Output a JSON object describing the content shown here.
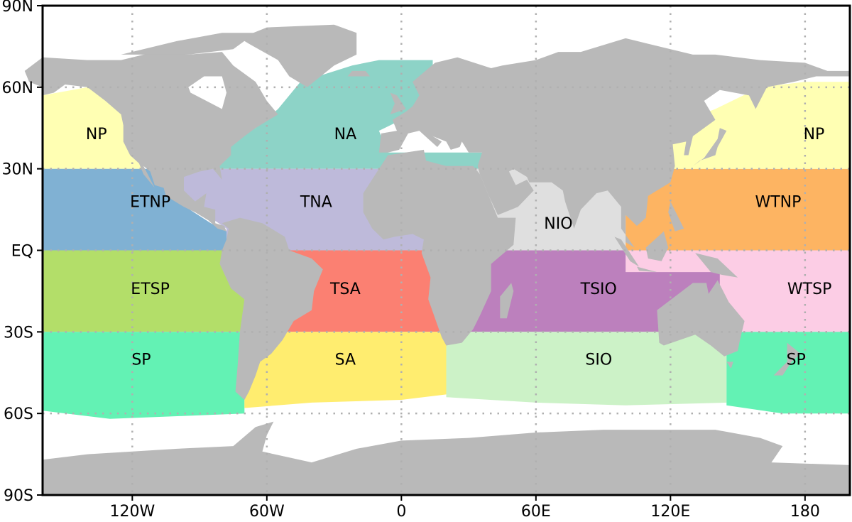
{
  "map": {
    "lon_range": [
      -160,
      200
    ],
    "lat_range": [
      -90,
      90
    ],
    "ocean_color": "#ffffff",
    "land_color": "#b9b9b9",
    "grid": {
      "style": "dotted",
      "color": "#b0b0b0"
    },
    "x_ticks": [
      {
        "lon": -120,
        "label": "120W"
      },
      {
        "lon": -60,
        "label": "60W"
      },
      {
        "lon": 0,
        "label": "0"
      },
      {
        "lon": 60,
        "label": "60E"
      },
      {
        "lon": 120,
        "label": "120E"
      },
      {
        "lon": 180,
        "label": "180"
      }
    ],
    "y_ticks": [
      {
        "lat": 90,
        "label": "90N"
      },
      {
        "lat": 60,
        "label": "60N"
      },
      {
        "lat": 30,
        "label": "30N"
      },
      {
        "lat": 0,
        "label": "EQ"
      },
      {
        "lat": -30,
        "label": "30S"
      },
      {
        "lat": -60,
        "label": "60S"
      },
      {
        "lat": -90,
        "label": "90S"
      }
    ],
    "regions": [
      {
        "name": "NP",
        "color": "#ffffb3"
      },
      {
        "name": "NA",
        "color": "#8dd3c7"
      },
      {
        "name": "ETNP",
        "color": "#80b1d3"
      },
      {
        "name": "TNA",
        "color": "#bebada"
      },
      {
        "name": "NIO",
        "color": "#dfdfdf"
      },
      {
        "name": "WTNP",
        "color": "#fdb462"
      },
      {
        "name": "NP",
        "color": "#ffffb3"
      },
      {
        "name": "ETSP",
        "color": "#b3de69"
      },
      {
        "name": "TSA",
        "color": "#fb8072"
      },
      {
        "name": "WTSP",
        "color": "#fccde5"
      },
      {
        "name": "TSIO",
        "color": "#bc80bd"
      },
      {
        "name": "SP",
        "color": "#63f2b4"
      },
      {
        "name": "SA",
        "color": "#ffed6f"
      },
      {
        "name": "SIO",
        "color": "#ccf2c7"
      },
      {
        "name": "SP",
        "color": "#63f2b4"
      }
    ]
  }
}
